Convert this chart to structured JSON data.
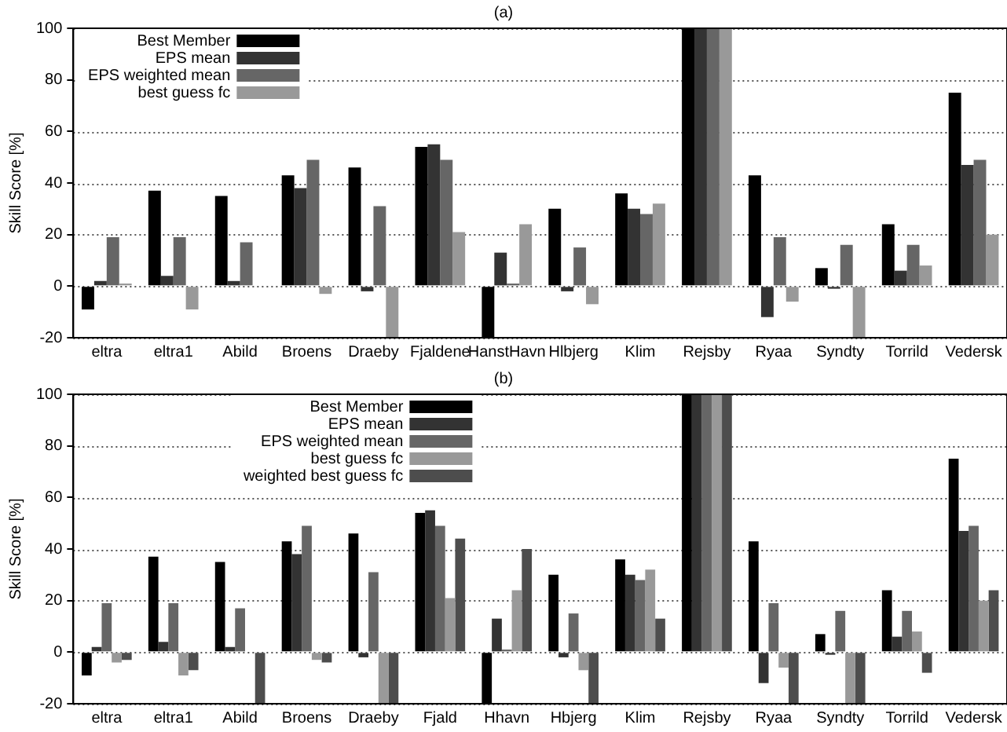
{
  "chart_data": [
    {
      "type": "bar",
      "title": "(a)",
      "ylabel": "Skill Score [%]",
      "categories": [
        "eltra",
        "eltra1",
        "Abild",
        "Broens",
        "Draeby",
        "Fjaldene",
        "HanstHavn",
        "Hlbjerg",
        "Klim",
        "Rejsby",
        "Ryaa",
        "Syndty",
        "Torrild",
        "Vedersk"
      ],
      "series": [
        {
          "name": "Best Member",
          "color": "#000000",
          "values": [
            -9,
            37,
            35,
            43,
            46,
            54,
            -20,
            30,
            36,
            100,
            43,
            7,
            24,
            75
          ]
        },
        {
          "name": "EPS mean",
          "color": "#333333",
          "values": [
            2,
            4,
            2,
            38,
            -2,
            55,
            13,
            -2,
            30,
            100,
            -12,
            -1,
            6,
            47
          ]
        },
        {
          "name": "EPS weighted mean",
          "color": "#666666",
          "values": [
            19,
            19,
            17,
            49,
            31,
            49,
            1,
            15,
            28,
            100,
            19,
            16,
            16,
            49
          ]
        },
        {
          "name": "best guess fc",
          "color": "#999999",
          "values": [
            1,
            -9,
            0,
            -3,
            -20,
            21,
            24,
            -7,
            32,
            100,
            -6,
            -20,
            8,
            20
          ]
        }
      ],
      "ylim": [
        -20,
        100
      ],
      "yticks": [
        -20,
        0,
        20,
        40,
        60,
        80,
        100
      ],
      "grid": "y",
      "legend": "top left"
    },
    {
      "type": "bar",
      "title": "(b)",
      "ylabel": "Skill Score [%]",
      "categories": [
        "eltra",
        "eltra1",
        "Abild",
        "Broens",
        "Draeby",
        "Fjald",
        "Hhavn",
        "Hbjerg",
        "Klim",
        "Rejsby",
        "Ryaa",
        "Syndty",
        "Torrild",
        "Vedersk"
      ],
      "series": [
        {
          "name": "Best Member",
          "color": "#000000",
          "values": [
            -9,
            37,
            35,
            43,
            46,
            54,
            -20,
            30,
            36,
            100,
            43,
            7,
            24,
            75
          ]
        },
        {
          "name": "EPS mean",
          "color": "#333333",
          "values": [
            2,
            4,
            2,
            38,
            -2,
            55,
            13,
            -2,
            30,
            100,
            -12,
            -1,
            6,
            47
          ]
        },
        {
          "name": "EPS weighted mean",
          "color": "#666666",
          "values": [
            19,
            19,
            17,
            49,
            31,
            49,
            1,
            15,
            28,
            100,
            19,
            16,
            16,
            49
          ]
        },
        {
          "name": "best guess fc",
          "color": "#999999",
          "values": [
            -4,
            -9,
            0,
            -3,
            -20,
            21,
            24,
            -7,
            32,
            100,
            -6,
            -20,
            8,
            20
          ]
        },
        {
          "name": "weighted best guess fc",
          "color": "#4d4d4d",
          "values": [
            -3,
            -7,
            -20,
            -4,
            -20,
            44,
            40,
            -20,
            13,
            100,
            -20,
            -20,
            -8,
            24
          ]
        }
      ],
      "ylim": [
        -20,
        100
      ],
      "yticks": [
        -20,
        0,
        20,
        40,
        60,
        80,
        100
      ],
      "grid": "y",
      "legend": "top left"
    }
  ]
}
